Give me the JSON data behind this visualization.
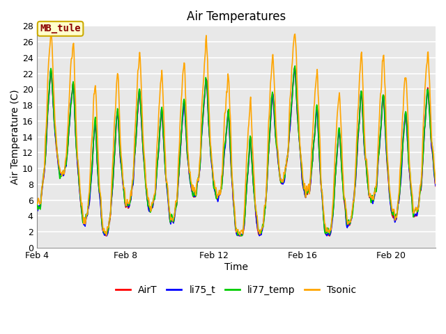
{
  "title": "Air Temperatures",
  "xlabel": "Time",
  "ylabel": "Air Temperature (C)",
  "ylim": [
    0,
    28
  ],
  "yticks": [
    0,
    2,
    4,
    6,
    8,
    10,
    12,
    14,
    16,
    18,
    20,
    22,
    24,
    26,
    28
  ],
  "xtick_labels": [
    "Feb 4",
    "Feb 8",
    "Feb 12",
    "Feb 16",
    "Feb 20"
  ],
  "xtick_positions": [
    4,
    8,
    12,
    16,
    20
  ],
  "xmin": 4,
  "xmax": 22,
  "annotation_text": "MB_tule",
  "annotation_color": "#8B0000",
  "annotation_bg": "#FFFFCC",
  "annotation_border": "#CCAA00",
  "colors": {
    "AirT": "#FF0000",
    "li75_t": "#0000FF",
    "li77_temp": "#00CC00",
    "Tsonic": "#FFA500"
  },
  "line_width": 1.2,
  "plot_bg": "#E8E8E8",
  "grid_color": "#FFFFFF",
  "title_fontsize": 12,
  "axis_label_fontsize": 10,
  "tick_fontsize": 9,
  "legend_fontsize": 10
}
